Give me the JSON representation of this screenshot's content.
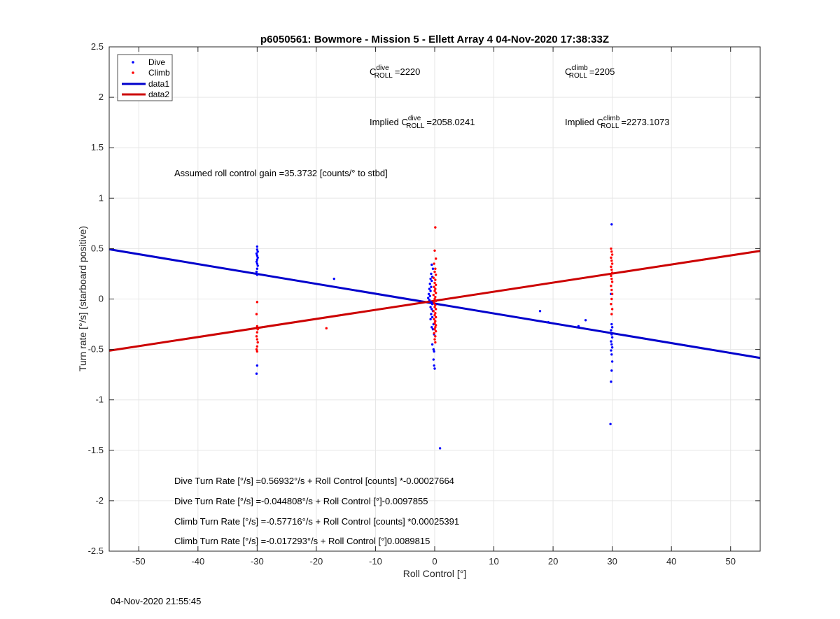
{
  "chart_data": {
    "type": "scatter",
    "title": "p6050561: Bowmore - Mission 5 - Ellett Array 4 04-Nov-2020 17:38:33Z",
    "xlabel": "Roll Control [°]",
    "ylabel": "Turn rate [°/s] (starboard positive)",
    "xlim": [
      -55,
      55
    ],
    "ylim": [
      -2.5,
      2.5
    ],
    "xticks": [
      -50,
      -40,
      -30,
      -20,
      -10,
      0,
      10,
      20,
      30,
      40,
      50
    ],
    "yticks": [
      -2.5,
      -2,
      -1.5,
      -1,
      -0.5,
      0,
      0.5,
      1,
      1.5,
      2,
      2.5
    ],
    "xtick_labels": [
      "-50",
      "-40",
      "-30",
      "-20",
      "-10",
      "0",
      "10",
      "20",
      "30",
      "40",
      "50"
    ],
    "ytick_labels": [
      "-2.5",
      "-2",
      "-1.5",
      "-1",
      "-0.5",
      "0",
      "0.5",
      "1",
      "1.5",
      "2",
      "2.5"
    ],
    "grid": true,
    "legend_position": "top-left",
    "series": [
      {
        "name": "Dive",
        "kind": "points",
        "color": "#0000ff",
        "points": [
          [
            -30.0,
            0.52
          ],
          [
            -30.0,
            0.49
          ],
          [
            -29.9,
            0.47
          ],
          [
            -30.1,
            0.45
          ],
          [
            -30.0,
            0.43
          ],
          [
            -29.9,
            0.41
          ],
          [
            -30.0,
            0.39
          ],
          [
            -30.1,
            0.37
          ],
          [
            -30.0,
            0.35
          ],
          [
            -29.9,
            0.33
          ],
          [
            -30.0,
            0.3
          ],
          [
            -30.1,
            0.27
          ],
          [
            -30.0,
            0.24
          ],
          [
            -30.0,
            -0.66
          ],
          [
            -30.1,
            -0.74
          ],
          [
            -17.0,
            0.2
          ],
          [
            -0.5,
            0.34
          ],
          [
            -0.3,
            0.3
          ],
          [
            -0.6,
            0.25
          ],
          [
            -0.4,
            0.22
          ],
          [
            -0.7,
            0.2
          ],
          [
            -0.5,
            0.18
          ],
          [
            -0.8,
            0.15
          ],
          [
            -0.6,
            0.12
          ],
          [
            -0.9,
            0.1
          ],
          [
            -0.7,
            0.08
          ],
          [
            -1.0,
            0.05
          ],
          [
            -0.8,
            0.03
          ],
          [
            -1.1,
            0.01
          ],
          [
            -0.9,
            -0.01
          ],
          [
            -0.6,
            -0.03
          ],
          [
            -0.4,
            -0.05
          ],
          [
            -0.7,
            -0.08
          ],
          [
            -0.5,
            -0.1
          ],
          [
            -0.3,
            -0.12
          ],
          [
            -0.6,
            -0.15
          ],
          [
            -0.4,
            -0.18
          ],
          [
            -0.7,
            -0.2
          ],
          [
            -0.2,
            -0.25
          ],
          [
            -0.5,
            -0.28
          ],
          [
            -0.3,
            -0.3
          ],
          [
            -0.1,
            -0.35
          ],
          [
            -0.4,
            -0.45
          ],
          [
            -0.2,
            -0.5
          ],
          [
            -0.1,
            -0.52
          ],
          [
            -0.2,
            -0.6
          ],
          [
            -0.1,
            -0.66
          ],
          [
            0.0,
            -0.69
          ],
          [
            0.9,
            -1.48
          ],
          [
            17.8,
            -0.12
          ],
          [
            19.2,
            -0.23
          ],
          [
            24.3,
            -0.27
          ],
          [
            25.5,
            -0.21
          ],
          [
            29.9,
            0.74
          ],
          [
            29.8,
            0.05
          ],
          [
            29.9,
            -0.25
          ],
          [
            30.0,
            -0.28
          ],
          [
            29.8,
            -0.31
          ],
          [
            29.9,
            -0.35
          ],
          [
            30.0,
            -0.38
          ],
          [
            29.8,
            -0.42
          ],
          [
            29.9,
            -0.45
          ],
          [
            30.0,
            -0.48
          ],
          [
            29.8,
            -0.51
          ],
          [
            29.9,
            -0.55
          ],
          [
            30.0,
            -0.62
          ],
          [
            29.9,
            -0.71
          ],
          [
            29.8,
            -0.82
          ],
          [
            29.7,
            -1.24
          ]
        ]
      },
      {
        "name": "Climb",
        "kind": "points",
        "color": "#ff0000",
        "points": [
          [
            -30.0,
            -0.03
          ],
          [
            -30.1,
            -0.15
          ],
          [
            -30.0,
            -0.27
          ],
          [
            -29.9,
            -0.3
          ],
          [
            -30.0,
            -0.33
          ],
          [
            -30.1,
            -0.37
          ],
          [
            -30.0,
            -0.4
          ],
          [
            -29.9,
            -0.43
          ],
          [
            -30.0,
            -0.47
          ],
          [
            -30.1,
            -0.5
          ],
          [
            -30.0,
            -0.52
          ],
          [
            -18.3,
            -0.29
          ],
          [
            0.1,
            0.71
          ],
          [
            0.0,
            0.48
          ],
          [
            0.2,
            0.4
          ],
          [
            -0.1,
            0.35
          ],
          [
            0.1,
            0.3
          ],
          [
            0.0,
            0.27
          ],
          [
            0.2,
            0.24
          ],
          [
            -0.2,
            0.21
          ],
          [
            0.1,
            0.19
          ],
          [
            0.0,
            0.16
          ],
          [
            0.2,
            0.14
          ],
          [
            -0.1,
            0.12
          ],
          [
            0.1,
            0.1
          ],
          [
            0.0,
            0.08
          ],
          [
            0.2,
            0.06
          ],
          [
            -0.2,
            0.04
          ],
          [
            0.1,
            0.02
          ],
          [
            0.0,
            0.0
          ],
          [
            0.2,
            -0.02
          ],
          [
            -0.1,
            -0.04
          ],
          [
            0.1,
            -0.06
          ],
          [
            0.0,
            -0.08
          ],
          [
            0.2,
            -0.1
          ],
          [
            -0.2,
            -0.12
          ],
          [
            0.1,
            -0.14
          ],
          [
            0.0,
            -0.16
          ],
          [
            0.2,
            -0.18
          ],
          [
            -0.1,
            -0.2
          ],
          [
            0.1,
            -0.22
          ],
          [
            0.0,
            -0.24
          ],
          [
            0.2,
            -0.26
          ],
          [
            0.1,
            -0.28
          ],
          [
            0.0,
            -0.3
          ],
          [
            0.2,
            -0.32
          ],
          [
            -0.1,
            -0.34
          ],
          [
            0.1,
            -0.37
          ],
          [
            0.0,
            -0.4
          ],
          [
            0.1,
            -0.43
          ],
          [
            29.8,
            0.5
          ],
          [
            29.9,
            0.47
          ],
          [
            30.0,
            0.44
          ],
          [
            29.8,
            0.41
          ],
          [
            29.9,
            0.38
          ],
          [
            30.0,
            0.35
          ],
          [
            29.8,
            0.32
          ],
          [
            29.9,
            0.29
          ],
          [
            30.0,
            0.26
          ],
          [
            29.8,
            0.23
          ],
          [
            29.9,
            0.2
          ],
          [
            30.0,
            0.17
          ],
          [
            29.8,
            0.13
          ],
          [
            29.9,
            0.09
          ],
          [
            30.0,
            0.05
          ],
          [
            29.9,
            0.0
          ],
          [
            29.8,
            -0.05
          ],
          [
            30.0,
            -0.1
          ],
          [
            29.9,
            -0.15
          ]
        ]
      },
      {
        "name": "data1",
        "kind": "line",
        "color": "#0000cc",
        "x": [
          -55,
          55
        ],
        "y": [
          0.493,
          -0.584
        ]
      },
      {
        "name": "data2",
        "kind": "line",
        "color": "#cc0000",
        "x": [
          -55,
          55
        ],
        "y": [
          -0.512,
          0.477
        ]
      }
    ],
    "annotations": {
      "c_dive_main": "C",
      "c_dive_sup": "dive",
      "c_dive_sub": "ROLL",
      "c_dive_val": "=2220",
      "c_climb_main": "C",
      "c_climb_sup": "climb",
      "c_climb_sub": "ROLL",
      "c_climb_val": "=2205",
      "implied_dive_pre": "Implied C",
      "implied_dive_sup": "dive",
      "implied_dive_sub": "ROLL",
      "implied_dive_val": "=2058.0241",
      "implied_climb_pre": "Implied C",
      "implied_climb_sup": "climb",
      "implied_climb_sub": "ROLL",
      "implied_climb_val": "=2273.1073",
      "gain": "Assumed roll control gain =35.3732 [counts/° to stbd]",
      "eq1": "Dive Turn Rate [°/s] =0.56932°/s + Roll Control [counts] *-0.00027664",
      "eq2": "Dive Turn Rate [°/s] =-0.044808°/s + Roll Control [°]-0.0097855",
      "eq3": "Climb Turn Rate [°/s] =-0.57716°/s + Roll Control [counts] *0.00025391",
      "eq4": "Climb Turn Rate [°/s] =-0.017293°/s + Roll Control [°]0.0089815"
    }
  },
  "footer": {
    "timestamp": "04-Nov-2020 21:55:45"
  }
}
